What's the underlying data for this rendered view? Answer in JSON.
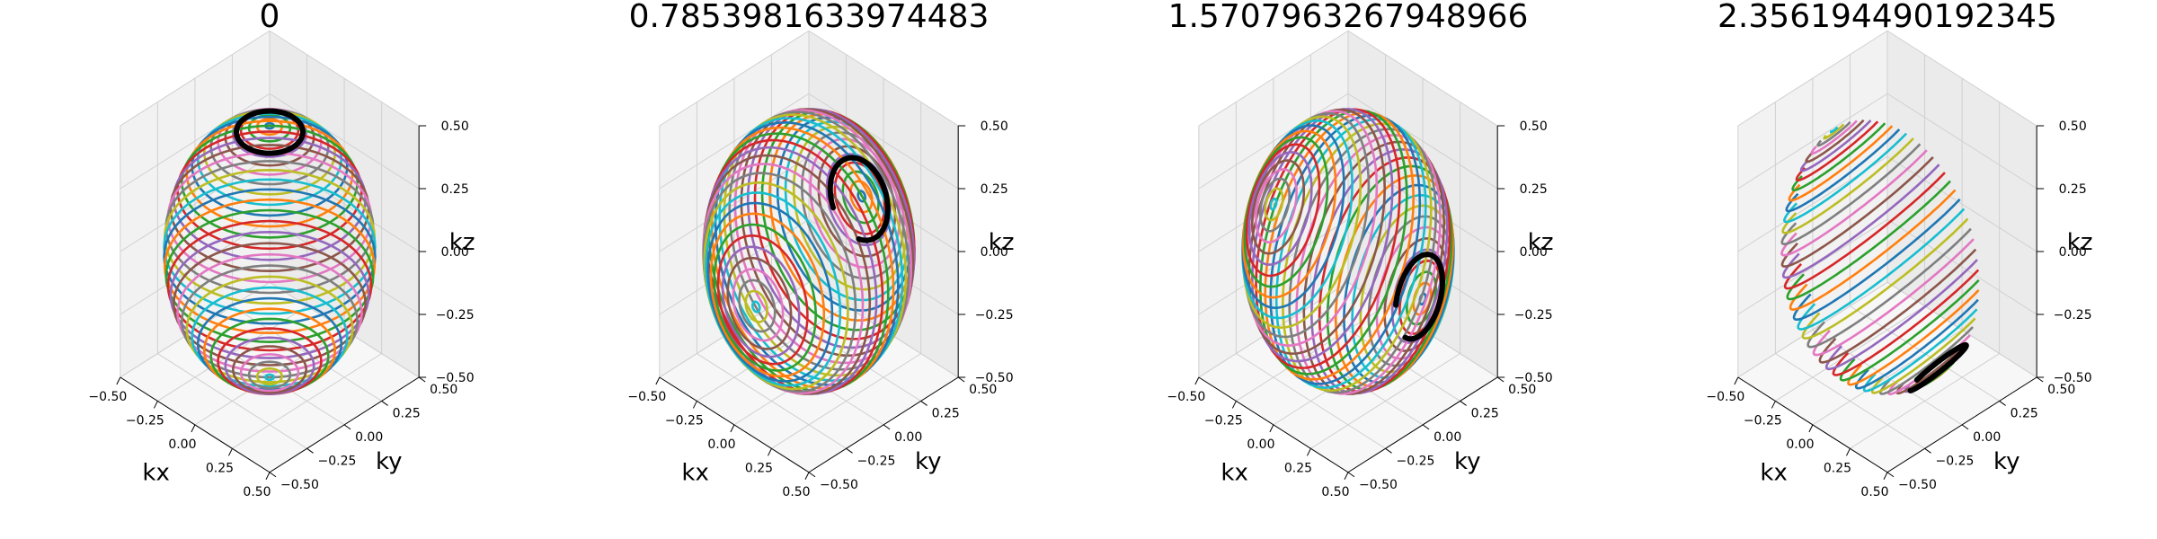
{
  "chart_data": [
    {
      "type": "line",
      "subtype": "3d-parametric-curves-on-sphere",
      "title": "0",
      "rotation_angle": 0,
      "xlabel": "kx",
      "ylabel": "ky",
      "zlabel": "kz",
      "xlim": [
        -0.5,
        0.5
      ],
      "ylim": [
        -0.5,
        0.5
      ],
      "zlim": [
        -0.5,
        0.5
      ],
      "xticks": [
        "−0.50",
        "−0.25",
        "0.00",
        "0.25",
        "0.50"
      ],
      "yticks": [
        "−0.50",
        "−0.25",
        "0.00",
        "0.25",
        "0.50"
      ],
      "zticks": [
        "−0.50",
        "−0.25",
        "0.00",
        "0.25",
        "0.50"
      ],
      "sphere_radius": 0.5,
      "curve_count": 40,
      "highlight_color": "#000000",
      "grid": true
    },
    {
      "type": "line",
      "subtype": "3d-parametric-curves-on-sphere",
      "title": "0.7853981633974483",
      "rotation_angle": 0.7853981633974483,
      "xlabel": "kx",
      "ylabel": "ky",
      "zlabel": "kz",
      "xlim": [
        -0.5,
        0.5
      ],
      "ylim": [
        -0.5,
        0.5
      ],
      "zlim": [
        -0.5,
        0.5
      ],
      "xticks": [
        "−0.50",
        "−0.25",
        "0.00",
        "0.25",
        "0.50"
      ],
      "yticks": [
        "−0.50",
        "−0.25",
        "0.00",
        "0.25",
        "0.50"
      ],
      "zticks": [
        "−0.50",
        "−0.25",
        "0.00",
        "0.25",
        "0.50"
      ],
      "sphere_radius": 0.5,
      "curve_count": 40,
      "highlight_color": "#000000",
      "grid": true
    },
    {
      "type": "line",
      "subtype": "3d-parametric-curves-on-sphere",
      "title": "1.5707963267948966",
      "rotation_angle": 1.5707963267948966,
      "xlabel": "kx",
      "ylabel": "ky",
      "zlabel": "kz",
      "xlim": [
        -0.5,
        0.5
      ],
      "ylim": [
        -0.5,
        0.5
      ],
      "zlim": [
        -0.5,
        0.5
      ],
      "xticks": [
        "−0.50",
        "−0.25",
        "0.00",
        "0.25",
        "0.50"
      ],
      "yticks": [
        "−0.50",
        "−0.25",
        "0.00",
        "0.25",
        "0.50"
      ],
      "zticks": [
        "−0.50",
        "−0.25",
        "0.00",
        "0.25",
        "0.50"
      ],
      "sphere_radius": 0.5,
      "curve_count": 40,
      "highlight_color": "#000000",
      "grid": true
    },
    {
      "type": "line",
      "subtype": "3d-parametric-curves-on-sphere",
      "title": "2.356194490192345",
      "rotation_angle": 2.356194490192345,
      "xlabel": "kx",
      "ylabel": "ky",
      "zlabel": "kz",
      "xlim": [
        -0.5,
        0.5
      ],
      "ylim": [
        -0.5,
        0.5
      ],
      "zlim": [
        -0.5,
        0.5
      ],
      "xticks": [
        "−0.50",
        "−0.25",
        "0.00",
        "0.25",
        "0.50"
      ],
      "yticks": [
        "−0.50",
        "−0.25",
        "0.00",
        "0.25",
        "0.50"
      ],
      "zticks": [
        "−0.50",
        "−0.25",
        "0.00",
        "0.25",
        "0.50"
      ],
      "sphere_radius": 0.5,
      "curve_count": 40,
      "highlight_color": "#000000",
      "grid": true
    }
  ],
  "colors": {
    "cycle": [
      "#1f77b4",
      "#ff7f0e",
      "#2ca02c",
      "#d62728",
      "#9467bd",
      "#8c564b",
      "#e377c2",
      "#7f7f7f",
      "#bcbd22",
      "#17becf"
    ],
    "pane_back": "#ebebeb",
    "pane_side": "#f2f2f2",
    "pane_floor": "#f7f7f7",
    "grid": "#d0d0d0",
    "axis": "#000000"
  }
}
